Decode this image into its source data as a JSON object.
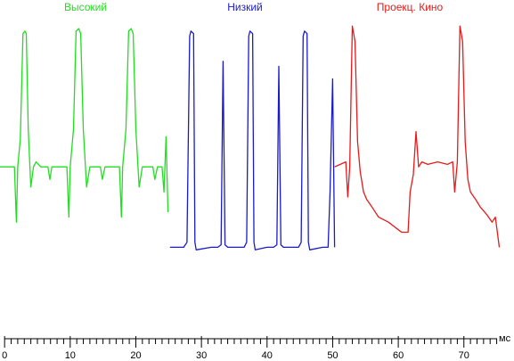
{
  "chart_data": {
    "type": "line",
    "xlabel": "мс",
    "xlim": [
      -0.7,
      75.6
    ],
    "ylim": [
      0,
      1
    ],
    "grid": false,
    "x_ticks_major": [
      0,
      10,
      20,
      30,
      40,
      50,
      60,
      70
    ],
    "x_ticks_minor_step": 1,
    "series": [
      {
        "name": "Высокий",
        "color": "#22dd22",
        "x": [
          -0.7,
          1.5,
          1.8,
          2.0,
          2.4,
          2.8,
          3.1,
          3.3,
          3.6,
          4.0,
          4.4,
          4.8,
          5.5,
          6.6,
          6.9,
          7.2,
          8.5,
          9.5,
          9.8,
          10.0,
          10.5,
          10.9,
          11.3,
          11.6,
          12.0,
          12.5,
          13.0,
          14.0,
          14.6,
          14.9,
          15.3,
          16.5,
          17.5,
          17.8,
          18.0,
          18.5,
          18.9,
          19.3,
          19.6,
          20.0,
          20.5,
          21.0,
          22.0,
          22.6,
          22.9,
          23.3,
          24.0,
          24.3,
          24.6,
          24.9
        ],
        "y": [
          0.4,
          0.4,
          0.18,
          0.4,
          0.51,
          0.93,
          0.94,
          0.93,
          0.55,
          0.32,
          0.4,
          0.42,
          0.4,
          0.4,
          0.35,
          0.4,
          0.4,
          0.4,
          0.2,
          0.4,
          0.55,
          0.94,
          0.95,
          0.93,
          0.55,
          0.32,
          0.4,
          0.4,
          0.4,
          0.35,
          0.4,
          0.4,
          0.4,
          0.2,
          0.4,
          0.55,
          0.94,
          0.95,
          0.93,
          0.55,
          0.32,
          0.4,
          0.4,
          0.4,
          0.35,
          0.4,
          0.4,
          0.3,
          0.52,
          0.22
        ]
      },
      {
        "name": "Низкий",
        "color": "#1a1acc",
        "x": [
          25.2,
          27.3,
          27.8,
          28.2,
          28.4,
          28.8,
          29.0,
          29.2,
          31.5,
          32.5,
          33.0,
          33.3,
          33.6,
          34.0,
          36.5,
          36.9,
          37.2,
          37.4,
          37.8,
          38.0,
          38.2,
          40.0,
          41.0,
          41.5,
          41.8,
          42.1,
          42.5,
          44.8,
          45.2,
          45.5,
          45.7,
          46.1,
          46.3,
          46.5,
          48.5,
          49.3,
          49.6,
          50.0,
          50.3
        ],
        "y": [
          0.08,
          0.08,
          0.1,
          0.92,
          0.94,
          0.93,
          0.1,
          0.07,
          0.08,
          0.08,
          0.09,
          0.82,
          0.09,
          0.08,
          0.08,
          0.1,
          0.92,
          0.94,
          0.93,
          0.1,
          0.07,
          0.08,
          0.08,
          0.09,
          0.8,
          0.09,
          0.08,
          0.08,
          0.1,
          0.92,
          0.94,
          0.93,
          0.1,
          0.07,
          0.08,
          0.08,
          0.3,
          0.75,
          0.08
        ]
      },
      {
        "name": "Проекц. Кино",
        "color": "#e61a1a",
        "x": [
          50.3,
          52.0,
          52.3,
          52.6,
          53.0,
          53.4,
          53.8,
          54.2,
          54.7,
          55.2,
          56.0,
          57.0,
          58.5,
          59.5,
          60.0,
          60.5,
          61.5,
          61.8,
          62.3,
          62.7,
          63.1,
          63.6,
          64.5,
          66.0,
          67.5,
          68.3,
          68.6,
          69.0,
          69.4,
          69.8,
          70.2,
          70.6,
          71.0,
          71.8,
          72.5,
          73.5,
          74.3,
          74.8,
          75.4
        ],
        "y": [
          0.4,
          0.42,
          0.28,
          0.4,
          0.96,
          0.9,
          0.5,
          0.38,
          0.3,
          0.27,
          0.24,
          0.2,
          0.18,
          0.16,
          0.15,
          0.14,
          0.14,
          0.3,
          0.37,
          0.54,
          0.4,
          0.42,
          0.41,
          0.42,
          0.41,
          0.42,
          0.3,
          0.42,
          0.96,
          0.9,
          0.5,
          0.35,
          0.3,
          0.27,
          0.24,
          0.21,
          0.18,
          0.2,
          0.08
        ]
      }
    ]
  }
}
